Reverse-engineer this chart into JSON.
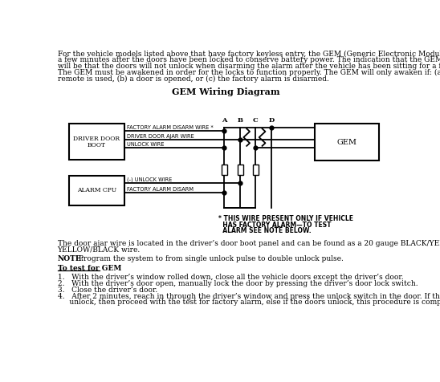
{
  "title": "GEM Wiring Diagram",
  "bg_color": "#ffffff",
  "text_color": "#000000",
  "intro_lines": [
    "For the vehicle models listed above that have factory keyless entry, the GEM (Generic Electronic Module) shuts down",
    "a few minutes after the doors have been locked to conserve battery power. The indication that the GEM is shutting down",
    "will be that the doors will not unlock when disarming the alarm after the vehicle has been sitting for a few minutes.",
    "The GEM must be awakened in order for the locks to function properly. The GEM will only awaken if: (a) the factory",
    "remote is used, (b) a door is opened, or (c) the factory alarm is disarmed."
  ],
  "footer_lines": [
    "The door ajar wire is located in the driver’s door boot panel and can be found as a 20 gauge BLACK/YELLOW or",
    "YELLOW/BLACK wire."
  ],
  "note_bold": "NOTE:",
  "note_rest": " Program the system to from single unlock pulse to double unlock pulse.",
  "underline_heading": "To test for GEM",
  "steps": [
    "With the driver’s window rolled down, close all the vehicle doors except the driver’s door.",
    "With the driver’s door open, manually lock the door by pressing the driver’s door lock switch.",
    "Close the driver’s door.",
    "After 2 minutes, reach in through the driver’s window and press the unlock switch in the door. If the doors fail to"
  ],
  "step4_line2": "     unlock, then proceed with the test for factory alarm, else if the doors unlock, this procedure is complete.",
  "asterisk_line1": "* THIS WIRE PRESENT ONLY IF VEHICLE",
  "asterisk_line2": "  HAS FACTORY ALARM—TO TEST",
  "asterisk_line3": "  ALARM SEE NOTE BELOW.",
  "wire_labels": [
    "FACTORY ALARM DISARM WIRE *",
    "DRIVER DOOR AJAR WIRE",
    "UNLOCK WIRE"
  ],
  "alarm_labels": [
    "(-) UNLOCK WIRE",
    "FACTORY ALARM DISARM"
  ],
  "connector_labels": [
    "A",
    "B",
    "C",
    "D"
  ],
  "ddb_label1": "DRIVER DOOR",
  "ddb_label2": "BOOT",
  "gem_label": "GEM",
  "alarm_cpu_label": "ALARM CPU"
}
